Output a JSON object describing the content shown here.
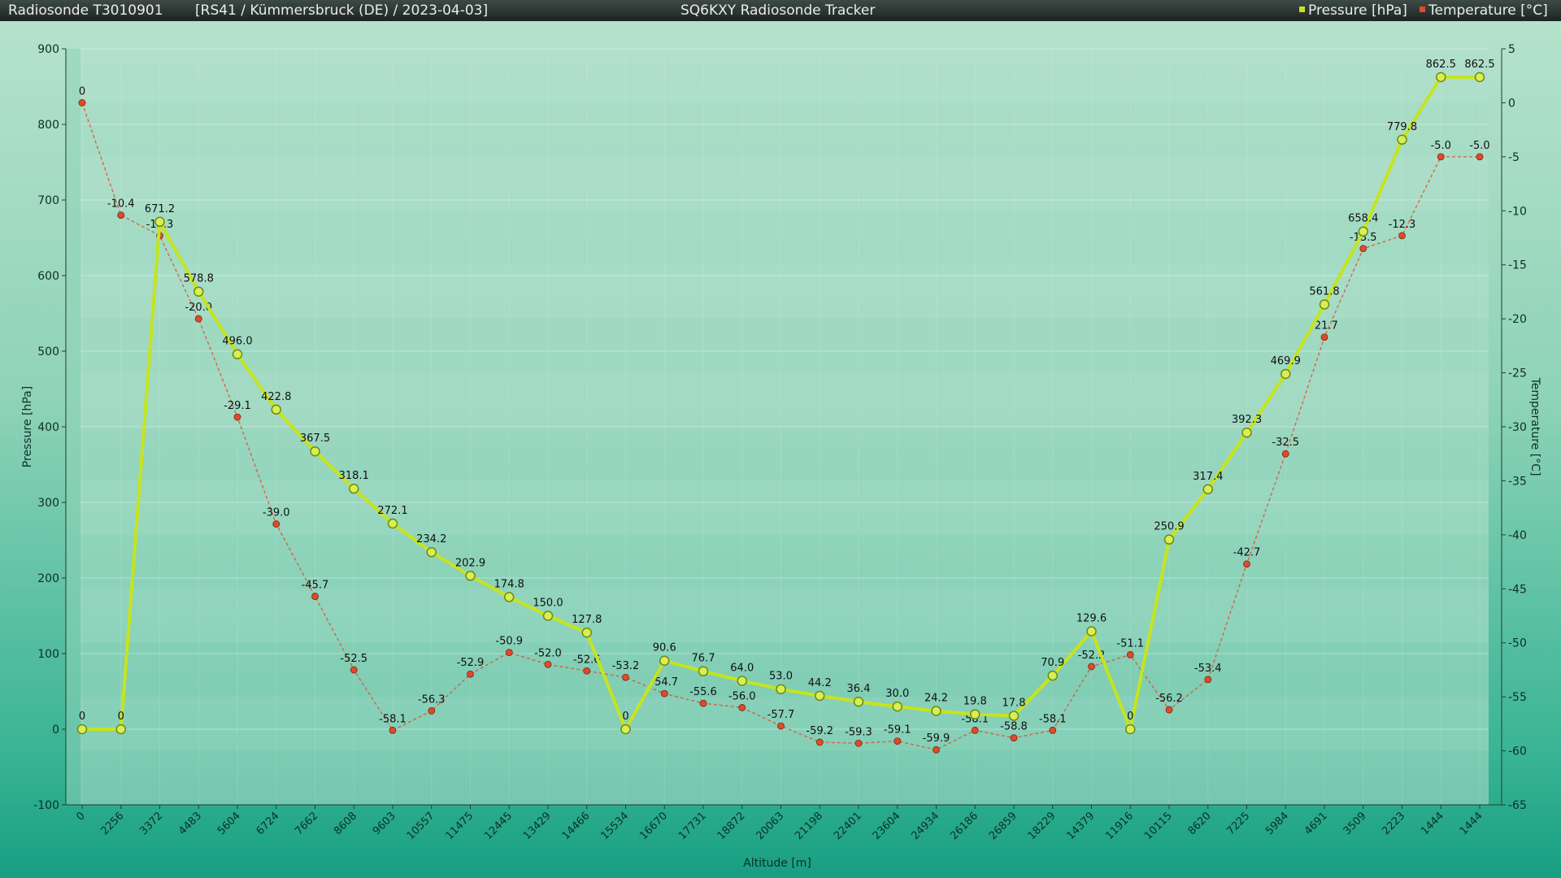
{
  "header": {
    "title_left": "Radiosonde T3010901",
    "subtitle": "[RS41 / Kümmersbruck (DE) / 2023-04-03]",
    "title_center": "SQ6KXY Radiosonde Tracker",
    "legend_pressure": "Pressure [hPa]",
    "legend_temperature": "Temperature [°C]"
  },
  "colors": {
    "pressure": "#c6e41e",
    "temperature": "#e04a2a",
    "axis_text": "#0d2f26"
  },
  "chart_data": {
    "type": "line",
    "xlabel": "Altitude [m]",
    "ylabel": "Pressure [hPa]",
    "y2label": "Temperature [°C]",
    "ylim": [
      -100,
      900
    ],
    "y2lim": [
      -65,
      5
    ],
    "yticks": [
      -100,
      0,
      100,
      200,
      300,
      400,
      500,
      600,
      700,
      800,
      900
    ],
    "y2ticks": [
      -65,
      -60,
      -55,
      -50,
      -45,
      -40,
      -35,
      -30,
      -25,
      -20,
      -15,
      -10,
      -5,
      0,
      5
    ],
    "categories": [
      "0",
      "2256",
      "3372",
      "4483",
      "5604",
      "6724",
      "7662",
      "8608",
      "9603",
      "10557",
      "11475",
      "12445",
      "13429",
      "14466",
      "15534",
      "16670",
      "17731",
      "18872",
      "20063",
      "21198",
      "22401",
      "23604",
      "24934",
      "26186",
      "26859",
      "18229",
      "14379",
      "11916",
      "10115",
      "8620",
      "7225",
      "5984",
      "4691",
      "3509",
      "2223",
      "1444",
      "1444"
    ],
    "series": [
      {
        "name": "Pressure [hPa]",
        "axis": "left",
        "values": [
          0,
          0,
          671.2,
          578.8,
          496.0,
          422.8,
          367.5,
          318.1,
          272.1,
          234.2,
          202.9,
          174.8,
          150.0,
          127.8,
          0,
          90.6,
          76.7,
          64.0,
          53.0,
          44.2,
          36.4,
          30.0,
          24.2,
          19.8,
          17.8,
          70.9,
          129.6,
          0,
          250.9,
          317.4,
          392.3,
          469.9,
          561.8,
          658.4,
          779.8,
          862.5,
          862.5
        ],
        "labels": [
          "0",
          "0",
          "671.2",
          "578.8",
          "496.0",
          "422.8",
          "367.5",
          "318.1",
          "272.1",
          "234.2",
          "202.9",
          "174.8",
          "150.0",
          "127.8",
          "0",
          "90.6",
          "76.7",
          "64.0",
          "53.0",
          "44.2",
          "36.4",
          "30.0",
          "24.2",
          "19.8",
          "17.8",
          "70.9",
          "129.6",
          "0",
          "250.9",
          "317.4",
          "392.3",
          "469.9",
          "561.8",
          "658.4",
          "779.8",
          "862.5",
          "862.5"
        ]
      },
      {
        "name": "Temperature [°C]",
        "axis": "right",
        "values": [
          0,
          -10.4,
          -12.3,
          -20.0,
          -29.1,
          -39.0,
          -45.7,
          -52.5,
          -58.1,
          -56.3,
          -52.9,
          -50.9,
          -52.0,
          -52.6,
          -53.2,
          -54.7,
          -55.6,
          -56.0,
          -57.7,
          -59.2,
          -59.3,
          -59.1,
          -59.9,
          -58.1,
          -58.8,
          -58.1,
          -52.2,
          -51.1,
          -56.2,
          -53.4,
          -42.7,
          -32.5,
          -21.7,
          -13.5,
          -12.3,
          -5.0,
          -5.0
        ],
        "labels": [
          "0",
          "-10.4",
          "-12.3",
          "-20.0",
          "-29.1",
          "-39.0",
          "-45.7",
          "-52.5",
          "-58.1",
          "-56.3",
          "-52.9",
          "-50.9",
          "-52.0",
          "-52.6",
          "-53.2",
          "-54.7",
          "-55.6",
          "-56.0",
          "-57.7",
          "-59.2",
          "-59.3",
          "-59.1",
          "-59.9",
          "-58.1",
          "-58.8",
          "-58.1",
          "-52.2",
          "-51.1",
          "-56.2",
          "-53.4",
          "-42.7",
          "-32.5",
          "-21.7",
          "-13.5",
          "-12.3",
          "-5.0",
          "-5.0"
        ]
      }
    ]
  }
}
